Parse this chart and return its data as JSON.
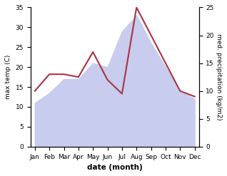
{
  "months": [
    "Jan",
    "Feb",
    "Mar",
    "Apr",
    "May",
    "Jun",
    "Jul",
    "Aug",
    "Sep",
    "Oct",
    "Nov",
    "Dec"
  ],
  "temp": [
    11,
    13.5,
    17,
    17,
    21,
    20,
    29,
    33,
    26,
    20,
    14,
    12
  ],
  "precip": [
    10,
    13,
    13,
    12.5,
    17,
    12,
    9.5,
    25,
    20,
    15,
    10,
    9
  ],
  "temp_fill_color": "#c8ccee",
  "precip_line_color": "#aa3344",
  "temp_ylim": [
    0,
    35
  ],
  "precip_ylim": [
    0,
    25
  ],
  "temp_yticks": [
    0,
    5,
    10,
    15,
    20,
    25,
    30,
    35
  ],
  "precip_yticks": [
    0,
    5,
    10,
    15,
    20,
    25
  ],
  "xlabel": "date (month)",
  "ylabel_left": "max temp (C)",
  "ylabel_right": "med. precipitation (kg/m2)",
  "bg_color": "#ffffff"
}
